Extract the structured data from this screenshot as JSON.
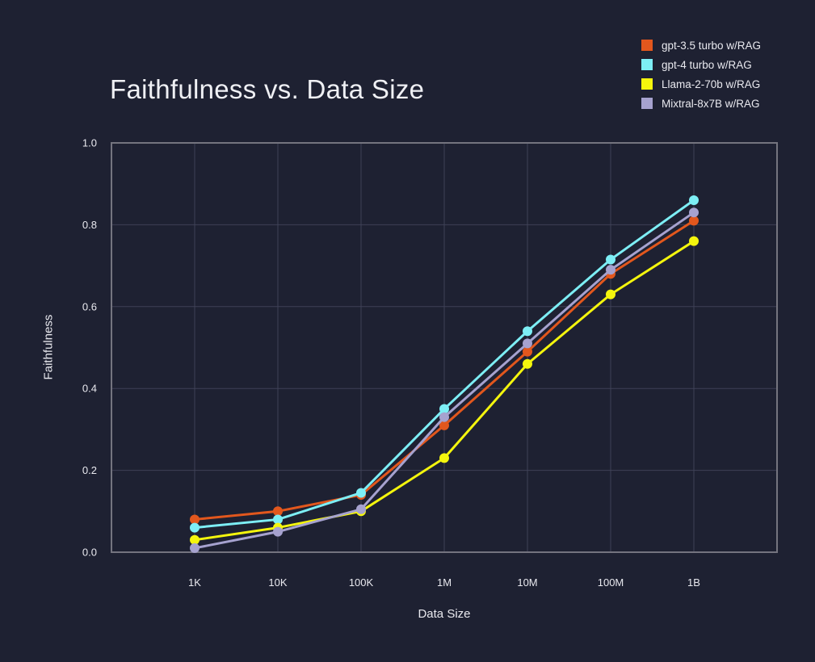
{
  "theme": {
    "background": "#1e2132",
    "plot_border_color": "#74747f",
    "grid_color": "#3f4156",
    "tick_text_color": "#e9e9ef",
    "title_color": "#eff0f4"
  },
  "chart_data": {
    "type": "line",
    "title": "Faithfulness vs. Data Size",
    "xlabel": "Data Size",
    "ylabel": "Faithfulness",
    "categories": [
      "1K",
      "10K",
      "100K",
      "1M",
      "10M",
      "100M",
      "1B"
    ],
    "ylim": [
      0.0,
      1.0
    ],
    "yticks": [
      0.0,
      0.2,
      0.4,
      0.6,
      0.8,
      1.0
    ],
    "grid": true,
    "legend_position": "top-right",
    "marker": "circle",
    "series": [
      {
        "name": "gpt-3.5 turbo w/RAG",
        "color": "#e2571d",
        "values": [
          0.08,
          0.1,
          0.14,
          0.31,
          0.49,
          0.68,
          0.81
        ]
      },
      {
        "name": "gpt-4 turbo w/RAG",
        "color": "#7deef5",
        "values": [
          0.06,
          0.08,
          0.145,
          0.35,
          0.54,
          0.715,
          0.86
        ]
      },
      {
        "name": "Llama-2-70b w/RAG",
        "color": "#f4f50d",
        "values": [
          0.03,
          0.06,
          0.1,
          0.23,
          0.46,
          0.63,
          0.76
        ]
      },
      {
        "name": "Mixtral-8x7B w/RAG",
        "color": "#a6a2cf",
        "values": [
          0.01,
          0.05,
          0.105,
          0.33,
          0.51,
          0.69,
          0.83
        ]
      }
    ]
  }
}
